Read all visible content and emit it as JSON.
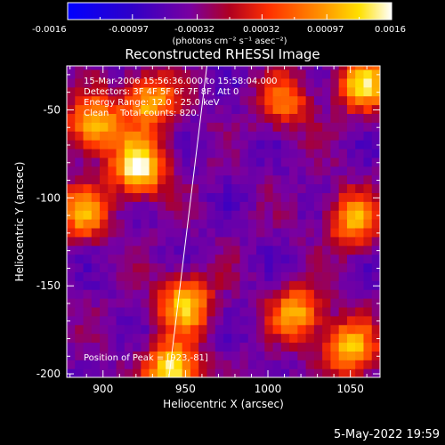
{
  "colorbar": {
    "ticks": [
      "-0.0016",
      "-0.00097",
      "-0.00032",
      "0.00032",
      "0.00097",
      "0.0016"
    ],
    "unit_label": "(photons cm⁻² s⁻¹ asec⁻²)",
    "range": [
      -0.0016,
      0.0016
    ]
  },
  "chart_data": {
    "type": "heatmap",
    "title": "Reconstructed RHESSI Image",
    "xlabel": "Heliocentric X (arcsec)",
    "ylabel": "Heliocentric Y (arcsec)",
    "xlim": [
      878,
      1068
    ],
    "ylim": [
      -202,
      -25
    ],
    "xticks": [
      "900",
      "950",
      "1000",
      "1050"
    ],
    "yticks": [
      "-50",
      "-100",
      "-150",
      "-200"
    ],
    "xtick_values": [
      900,
      950,
      1000,
      1050
    ],
    "ytick_values": [
      -50,
      -100,
      -150,
      -200
    ],
    "annotations": {
      "time_range": "15-Mar-2006 15:56:36.000 to 15:58:04.000",
      "detectors": "Detectors: 3F 4F 5F 6F 7F 8F, Att 0",
      "energy": "Energy Range: 12.0 - 25.0 keV",
      "clean": "Clean    Total counts: 820.",
      "peak": "Position of Peak = [923,-81]"
    },
    "peak": [
      923,
      -81
    ],
    "limb_line": [
      [
        940,
        -202
      ],
      [
        963,
        -25
      ]
    ],
    "bright_regions": [
      {
        "x": 922,
        "y": -82,
        "value": 0.0016
      },
      {
        "x": 895,
        "y": -58,
        "value": 0.0012
      },
      {
        "x": 928,
        "y": -45,
        "value": 0.0011
      },
      {
        "x": 888,
        "y": -108,
        "value": 0.0009
      },
      {
        "x": 950,
        "y": -160,
        "value": 0.0012
      },
      {
        "x": 942,
        "y": -198,
        "value": 0.0015
      },
      {
        "x": 1018,
        "y": -165,
        "value": 0.001
      },
      {
        "x": 1050,
        "y": -185,
        "value": 0.0011
      },
      {
        "x": 1058,
        "y": -35,
        "value": 0.0012
      },
      {
        "x": 1052,
        "y": -112,
        "value": 0.0009
      },
      {
        "x": 1010,
        "y": -45,
        "value": 0.0006
      }
    ]
  },
  "timestamp": "5-May-2022 19:59"
}
